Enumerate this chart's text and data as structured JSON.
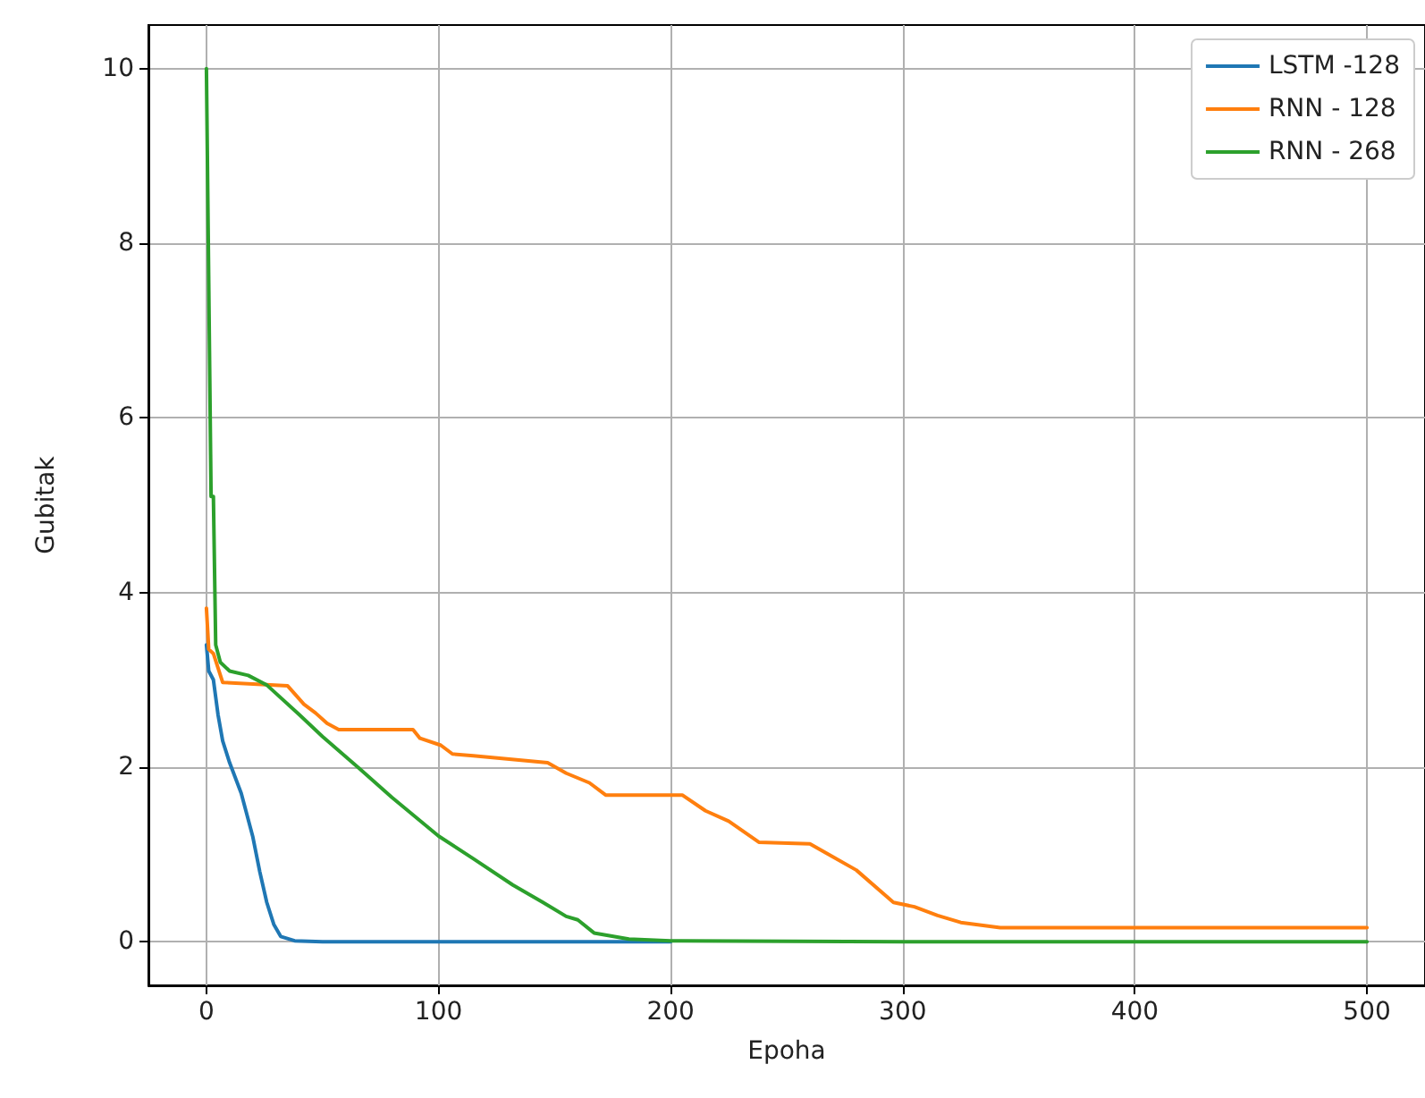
{
  "chart_data": {
    "type": "line",
    "xlabel": "Epoha",
    "ylabel": "Gubitak",
    "xlim": [
      -25,
      525
    ],
    "xticks": [
      0,
      100,
      200,
      300,
      400,
      500
    ],
    "ylim": [
      -0.5,
      10.5
    ],
    "yticks": [
      0,
      2,
      4,
      6,
      8,
      10
    ],
    "grid": true,
    "legend": "top right",
    "line_style": "solid",
    "marker": "none",
    "series": [
      {
        "name": "LSTM -128",
        "color": "#1f77b4",
        "x": [
          0,
          1,
          3,
          5,
          7,
          10,
          15,
          20,
          23,
          26,
          29,
          32,
          38,
          50,
          100,
          200
        ],
        "values": [
          3.4,
          3.1,
          3.0,
          2.6,
          2.3,
          2.05,
          1.7,
          1.2,
          0.8,
          0.45,
          0.2,
          0.06,
          0.01,
          0,
          0,
          0
        ]
      },
      {
        "name": "RNN - 128",
        "color": "#ff7f0e",
        "x": [
          0,
          1,
          3,
          7,
          35,
          42,
          47,
          52,
          57,
          89,
          92,
          101,
          106,
          115,
          147,
          155,
          165,
          172,
          205,
          215,
          225,
          238,
          260,
          268,
          280,
          296,
          305,
          315,
          325,
          342,
          500
        ],
        "values": [
          3.82,
          3.35,
          3.3,
          2.97,
          2.93,
          2.72,
          2.62,
          2.5,
          2.43,
          2.43,
          2.33,
          2.25,
          2.15,
          2.13,
          2.05,
          1.93,
          1.82,
          1.68,
          1.68,
          1.5,
          1.38,
          1.14,
          1.12,
          1.0,
          0.82,
          0.45,
          0.4,
          0.3,
          0.22,
          0.16,
          0.16
        ]
      },
      {
        "name": "RNN - 268",
        "color": "#2ca02c",
        "x": [
          0,
          2,
          3,
          4,
          6,
          10,
          18,
          26,
          40,
          50,
          66,
          80,
          100,
          115,
          132,
          145,
          155,
          160,
          167,
          182,
          200,
          300,
          400,
          500
        ],
        "values": [
          10,
          5.1,
          5.1,
          3.4,
          3.2,
          3.1,
          3.05,
          2.94,
          2.6,
          2.35,
          1.98,
          1.65,
          1.21,
          0.95,
          0.65,
          0.45,
          0.29,
          0.25,
          0.1,
          0.03,
          0.01,
          0,
          0,
          0
        ]
      }
    ]
  }
}
